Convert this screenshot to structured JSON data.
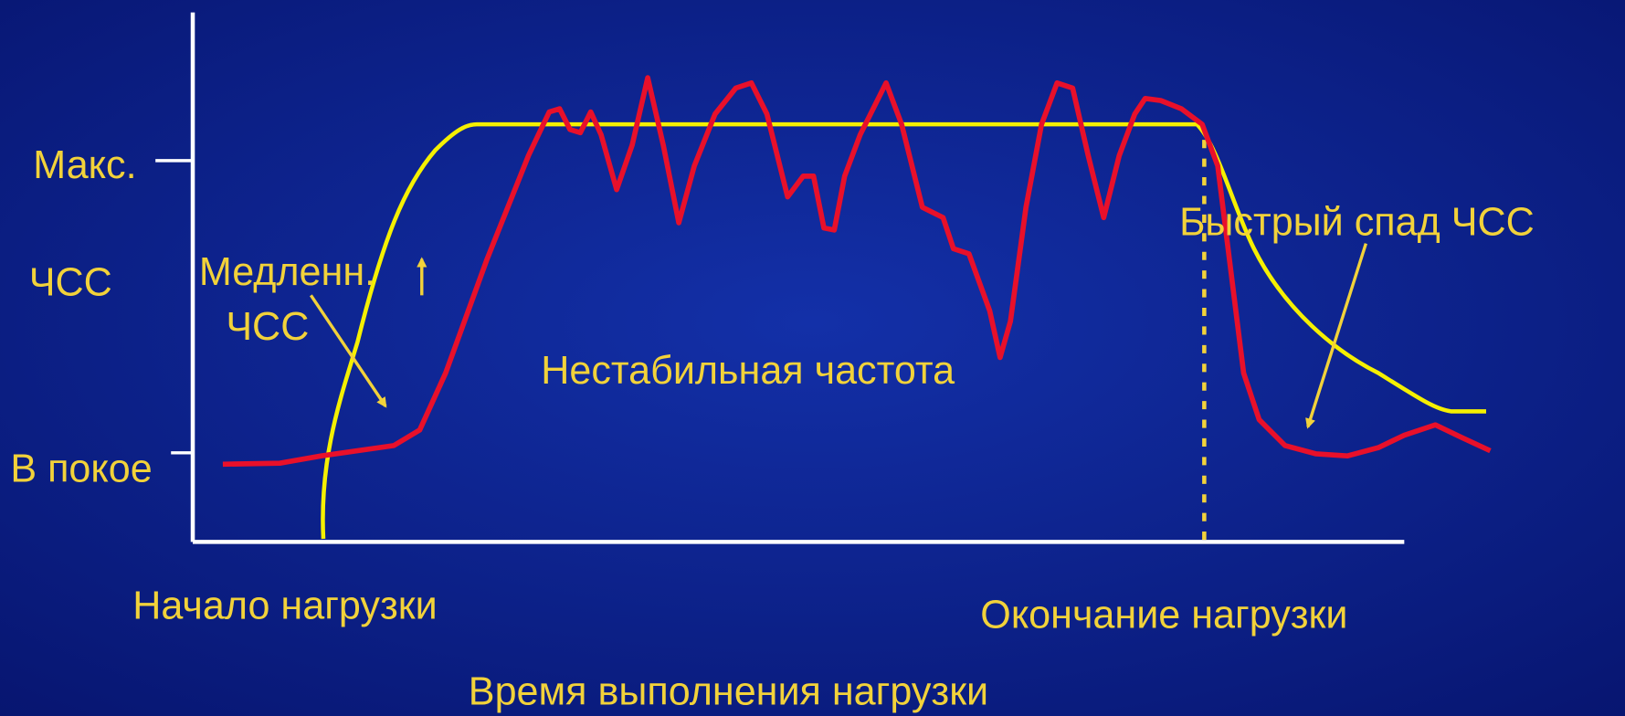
{
  "axis_labels": {
    "max": "Макс.",
    "hr": "ЧСС",
    "rest": "В покое",
    "start": "Начало нагрузки",
    "end": "Окончание нагрузки",
    "time": "Время выполнения нагрузки"
  },
  "annotations": {
    "slow_line1": "Медленн.",
    "slow_line2": "ЧСС",
    "unstable": "Нестабильная частота",
    "fast_drop": "Быстрый спад ЧСС"
  }
}
